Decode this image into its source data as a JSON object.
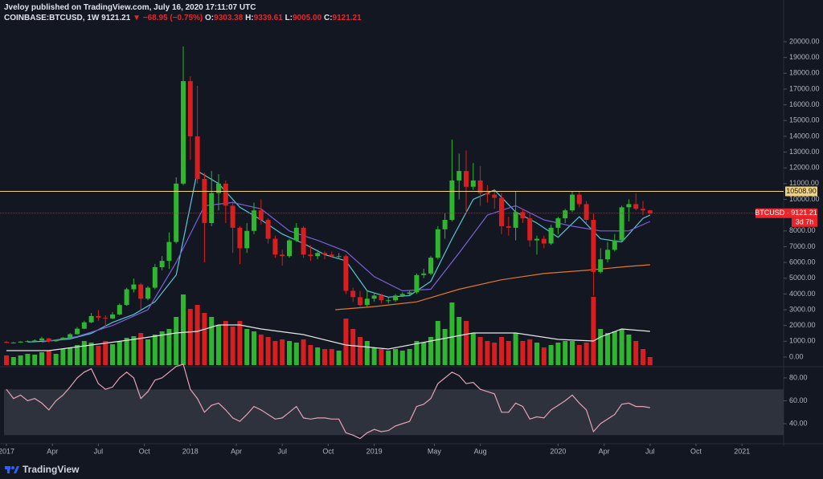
{
  "header": {
    "author_line": "Jveloy published on TradingView.com, July 16, 2020 17:11:07 UTC",
    "symbol": "COINBASE:BTCUSD, 1W",
    "price": "9121.21",
    "change": "▼ −68.95 (−0.75%)",
    "ohlc": [
      {
        "label": "O:",
        "value": "9303.38"
      },
      {
        "label": "H:",
        "value": "9339.61"
      },
      {
        "label": "L:",
        "value": "9005.00"
      },
      {
        "label": "C:",
        "value": "9121.21"
      }
    ]
  },
  "footer": {
    "brand": "TradingView"
  },
  "chart_data": [
    {
      "type": "candlestick",
      "x": [
        0,
        2,
        4,
        6,
        8,
        10,
        12,
        14,
        16,
        18,
        20,
        22,
        24,
        26,
        28,
        30,
        32,
        34,
        36,
        38,
        40,
        42,
        44,
        46,
        48,
        50,
        52,
        54,
        56,
        58,
        60,
        62,
        64,
        66,
        68,
        70,
        72,
        74,
        76,
        78,
        80,
        82,
        84,
        86,
        88,
        90,
        92,
        94,
        96,
        98,
        100,
        102,
        104,
        106,
        108,
        110,
        112,
        114,
        116,
        118,
        120,
        122,
        124,
        126,
        128,
        130,
        132,
        134,
        136,
        138,
        140,
        142,
        144,
        146,
        148,
        150,
        152,
        154,
        156,
        158,
        160,
        162,
        164,
        166,
        168,
        170,
        172,
        174,
        176,
        178,
        180,
        182
      ],
      "open": [
        960,
        900,
        920,
        980,
        1010,
        1050,
        1180,
        1000,
        1080,
        1230,
        1450,
        1800,
        2200,
        2600,
        2500,
        2450,
        2700,
        3300,
        4300,
        4600,
        3700,
        4400,
        5700,
        6100,
        7300,
        11000,
        17500,
        14000,
        11300,
        8500,
        10400,
        11000,
        9600,
        8200,
        6900,
        8000,
        9300,
        8700,
        7500,
        6500,
        6400,
        7400,
        8200,
        6500,
        6400,
        6600,
        6500,
        6400,
        6400,
        4200,
        3800,
        3300,
        3700,
        3900,
        3600,
        3600,
        3900,
        4000,
        4100,
        5200,
        5300,
        6300,
        8100,
        8700,
        11200,
        11800,
        10800,
        11200,
        10400,
        10300,
        10100,
        8300,
        8200,
        9200,
        8800,
        7400,
        7500,
        7200,
        8200,
        8800,
        9300,
        10300,
        9700,
        8700,
        5400,
        6200,
        6800,
        7400,
        9500,
        9700,
        9400,
        9303.38
      ],
      "high": [
        1020,
        960,
        1000,
        1060,
        1120,
        1290,
        1210,
        1110,
        1260,
        1520,
        1900,
        2300,
        2800,
        2980,
        2650,
        2850,
        3400,
        4400,
        4980,
        4700,
        4500,
        5900,
        6400,
        7900,
        11400,
        19700,
        17800,
        17200,
        11700,
        11800,
        11600,
        11200,
        9900,
        8300,
        8500,
        9800,
        10000,
        8800,
        7700,
        6800,
        7500,
        8500,
        8300,
        7100,
        6800,
        6700,
        6700,
        6600,
        6500,
        4400,
        4200,
        4200,
        4100,
        4000,
        3800,
        4000,
        4100,
        4200,
        5300,
        5600,
        6400,
        8300,
        9100,
        13800,
        12900,
        13100,
        12300,
        12100,
        10900,
        10500,
        10400,
        8900,
        10500,
        9400,
        9100,
        7700,
        7700,
        8400,
        8900,
        9400,
        10500,
        10500,
        9900,
        9100,
        6900,
        7300,
        7800,
        9600,
        10000,
        10400,
        9900,
        9339.61
      ],
      "low": [
        880,
        870,
        900,
        940,
        990,
        1030,
        900,
        980,
        1070,
        1210,
        1420,
        1780,
        2150,
        2300,
        1900,
        2400,
        2650,
        3250,
        4100,
        3000,
        3600,
        4300,
        5500,
        5600,
        7200,
        10900,
        12500,
        11000,
        6000,
        8300,
        9300,
        8500,
        6600,
        5900,
        6600,
        7800,
        8400,
        7200,
        6300,
        5800,
        6300,
        7300,
        6300,
        6100,
        6200,
        6200,
        6300,
        6200,
        4000,
        3500,
        3200,
        3200,
        3500,
        3400,
        3400,
        3500,
        3800,
        3900,
        4000,
        5000,
        5200,
        6200,
        7500,
        8600,
        10000,
        9100,
        10600,
        9600,
        9800,
        9400,
        7800,
        7700,
        7400,
        8500,
        7000,
        6500,
        6900,
        7100,
        7800,
        8500,
        9200,
        9500,
        8500,
        3900,
        5300,
        6000,
        6700,
        7300,
        8600,
        9300,
        9000,
        9005
      ],
      "close": [
        900,
        920,
        980,
        1010,
        1050,
        1180,
        1000,
        1080,
        1230,
        1450,
        1800,
        2200,
        2600,
        2500,
        2450,
        2700,
        3300,
        4300,
        4600,
        3700,
        4400,
        5700,
        6100,
        7300,
        11000,
        17500,
        14000,
        11300,
        8500,
        10400,
        11000,
        9600,
        8200,
        6900,
        8000,
        9300,
        8700,
        7500,
        6500,
        6400,
        7400,
        8200,
        6500,
        6400,
        6600,
        6500,
        6400,
        6400,
        4200,
        3800,
        3300,
        3700,
        3900,
        3600,
        3600,
        3900,
        4000,
        4100,
        5200,
        5300,
        6300,
        8100,
        8700,
        11200,
        11800,
        10800,
        11200,
        10400,
        10300,
        10100,
        8300,
        8200,
        9200,
        8800,
        7400,
        7500,
        7200,
        8200,
        8800,
        9300,
        10300,
        9700,
        8700,
        5400,
        6200,
        6800,
        7400,
        9500,
        9700,
        9400,
        9300,
        9121.21
      ],
      "up_color": "#2fb52f",
      "down_color": "#d81e1e",
      "volume": [
        12,
        10,
        12,
        14,
        13,
        16,
        18,
        14,
        20,
        22,
        25,
        30,
        28,
        24,
        30,
        26,
        30,
        34,
        36,
        40,
        32,
        38,
        42,
        45,
        60,
        88,
        70,
        75,
        65,
        60,
        50,
        55,
        48,
        55,
        45,
        42,
        38,
        35,
        30,
        32,
        30,
        28,
        32,
        25,
        22,
        20,
        20,
        18,
        58,
        45,
        35,
        30,
        22,
        20,
        18,
        20,
        18,
        20,
        30,
        28,
        35,
        55,
        45,
        78,
        60,
        55,
        40,
        35,
        30,
        28,
        35,
        30,
        40,
        30,
        32,
        28,
        22,
        25,
        28,
        30,
        30,
        25,
        28,
        85,
        45,
        40,
        42,
        45,
        38,
        30,
        20,
        10
      ],
      "lines": [
        {
          "color": "#55c8d8",
          "x": [
            6,
            12,
            18,
            24,
            30,
            36,
            42,
            48,
            54,
            60,
            66,
            72,
            78,
            84,
            90,
            96,
            102,
            108,
            114,
            120,
            126,
            132,
            138,
            144,
            150,
            156,
            162,
            168,
            174,
            180,
            182
          ],
          "values": [
            950,
            1020,
            1150,
            1500,
            2200,
            2700,
            3500,
            5200,
            11800,
            11000,
            9500,
            8700,
            7800,
            7200,
            6500,
            6100,
            4200,
            3800,
            3900,
            4800,
            7500,
            10000,
            10600,
            9200,
            8500,
            7600,
            8900,
            7500,
            7300,
            8800,
            9000
          ]
        },
        {
          "color": "#7b61d9",
          "x": [
            10,
            20,
            30,
            40,
            48,
            56,
            64,
            72,
            80,
            88,
            96,
            104,
            112,
            120,
            128,
            136,
            144,
            152,
            160,
            168,
            176,
            182
          ],
          "values": [
            950,
            1300,
            2000,
            3000,
            6000,
            9600,
            9800,
            9400,
            8000,
            7400,
            6700,
            5100,
            4200,
            4300,
            6600,
            9000,
            9600,
            8700,
            8300,
            8000,
            8000,
            8600
          ]
        },
        {
          "color": "#e0792b",
          "x": [
            93,
            104,
            116,
            128,
            140,
            152,
            164,
            176,
            182
          ],
          "values": [
            3000,
            3200,
            3500,
            4300,
            4900,
            5300,
            5500,
            5750,
            5850
          ]
        },
        {
          "color": "#e6e6e6",
          "axis": "y2",
          "x": [
            0,
            12,
            24,
            36,
            48,
            54,
            60,
            66,
            72,
            84,
            96,
            108,
            120,
            132,
            144,
            156,
            166,
            168,
            174,
            182
          ],
          "values": [
            18,
            18,
            25,
            32,
            40,
            42,
            50,
            50,
            45,
            38,
            25,
            20,
            30,
            40,
            40,
            32,
            30,
            35,
            45,
            42
          ]
        }
      ],
      "hlines": [
        {
          "value": 10508.9,
          "label": "10508.90",
          "color": "#f2d27a"
        }
      ],
      "price_line": {
        "value": 9121.21,
        "label": "BTCUSD · 9121.21",
        "countdown": "3d 7h",
        "color": "#e8262b"
      },
      "xlim": [
        -1.82,
        219.77
      ],
      "ylim": [
        -509,
        22239
      ],
      "y2lim": [
        0,
        447
      ],
      "yticks": [
        {
          "value": 0,
          "label": "0.00"
        },
        {
          "value": 1000,
          "label": "1000.00"
        },
        {
          "value": 2000,
          "label": "2000.00"
        },
        {
          "value": 3000,
          "label": "3000.00"
        },
        {
          "value": 4000,
          "label": "4000.00"
        },
        {
          "value": 5000,
          "label": "5000.00"
        },
        {
          "value": 6000,
          "label": "6000.00"
        },
        {
          "value": 7000,
          "label": "7000.00"
        },
        {
          "value": 8000,
          "label": "8000.00"
        },
        {
          "value": 9000,
          "label": "9000.00"
        },
        {
          "value": 10000,
          "label": "10000.00"
        },
        {
          "value": 11000,
          "label": "11000.00"
        },
        {
          "value": 12000,
          "label": "12000.00"
        },
        {
          "value": 13000,
          "label": "13000.00"
        },
        {
          "value": 14000,
          "label": "14000.00"
        },
        {
          "value": 15000,
          "label": "15000.00"
        },
        {
          "value": 16000,
          "label": "16000.00"
        },
        {
          "value": 17000,
          "label": "17000.00"
        },
        {
          "value": 18000,
          "label": "18000.00"
        },
        {
          "value": 19000,
          "label": "19000.00"
        },
        {
          "value": 20000,
          "label": "20000.00"
        }
      ]
    },
    {
      "type": "line",
      "x": [
        0,
        2,
        4,
        6,
        8,
        10,
        12,
        14,
        16,
        18,
        20,
        22,
        24,
        26,
        28,
        30,
        32,
        34,
        36,
        38,
        40,
        42,
        44,
        46,
        48,
        50,
        52,
        54,
        56,
        58,
        60,
        62,
        64,
        66,
        68,
        70,
        72,
        74,
        76,
        78,
        80,
        82,
        84,
        86,
        88,
        90,
        92,
        94,
        96,
        98,
        100,
        102,
        104,
        106,
        108,
        110,
        112,
        114,
        116,
        118,
        120,
        122,
        124,
        126,
        128,
        130,
        132,
        134,
        136,
        138,
        140,
        142,
        144,
        146,
        148,
        150,
        152,
        154,
        156,
        158,
        160,
        162,
        164,
        166,
        168,
        170,
        172,
        174,
        176,
        178,
        180,
        182
      ],
      "values": [
        70,
        62,
        65,
        60,
        62,
        58,
        52,
        60,
        65,
        72,
        80,
        85,
        88,
        75,
        70,
        72,
        80,
        85,
        80,
        62,
        68,
        78,
        80,
        85,
        90,
        92,
        70,
        62,
        50,
        56,
        58,
        52,
        45,
        42,
        48,
        55,
        52,
        48,
        44,
        45,
        50,
        55,
        45,
        44,
        45,
        45,
        44,
        44,
        32,
        30,
        27,
        32,
        35,
        33,
        34,
        38,
        40,
        42,
        55,
        57,
        62,
        75,
        80,
        85,
        82,
        75,
        76,
        70,
        68,
        66,
        50,
        50,
        58,
        55,
        44,
        46,
        45,
        52,
        56,
        60,
        65,
        58,
        52,
        33,
        40,
        44,
        48,
        57,
        58,
        55,
        55,
        54
      ],
      "color": "#e8a0b5",
      "band": [
        30,
        70
      ],
      "band_color": "#363a45",
      "xlim": [
        -1.82,
        219.77
      ],
      "ylim": [
        23.2,
        89.1
      ],
      "yticks": [
        {
          "value": 40,
          "label": "40.00"
        },
        {
          "value": 60,
          "label": "60.00"
        },
        {
          "value": 80,
          "label": "80.00"
        }
      ],
      "xticks": [
        {
          "value": 0,
          "label": "2017"
        },
        {
          "value": 13,
          "label": "Apr"
        },
        {
          "value": 26,
          "label": "Jul"
        },
        {
          "value": 39,
          "label": "Oct"
        },
        {
          "value": 52,
          "label": "2018"
        },
        {
          "value": 65,
          "label": "Apr"
        },
        {
          "value": 78,
          "label": "Jul"
        },
        {
          "value": 91,
          "label": "Oct"
        },
        {
          "value": 104,
          "label": "2019"
        },
        {
          "value": 121,
          "label": "May"
        },
        {
          "value": 134,
          "label": "Aug"
        },
        {
          "value": 156,
          "label": "2020"
        },
        {
          "value": 169,
          "label": "Apr"
        },
        {
          "value": 182,
          "label": "Jul"
        },
        {
          "value": 195,
          "label": "Oct"
        },
        {
          "value": 208,
          "label": "2021"
        }
      ]
    }
  ]
}
